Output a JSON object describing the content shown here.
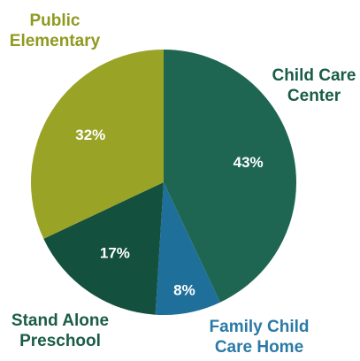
{
  "chart_data": {
    "type": "pie",
    "categories": [
      "Child Care Center",
      "Family Child Care Home",
      "Stand Alone Preschool",
      "Public Elementary"
    ],
    "values": [
      43,
      8,
      17,
      32
    ],
    "value_labels": [
      "43%",
      "8%",
      "17%",
      "32%"
    ],
    "colors": [
      "#1e6652",
      "#1f6f9b",
      "#14503e",
      "#99a326"
    ],
    "label_colors": [
      "#1a5c48",
      "#2a79a6",
      "#1a5c48",
      "#8f9a20"
    ]
  }
}
